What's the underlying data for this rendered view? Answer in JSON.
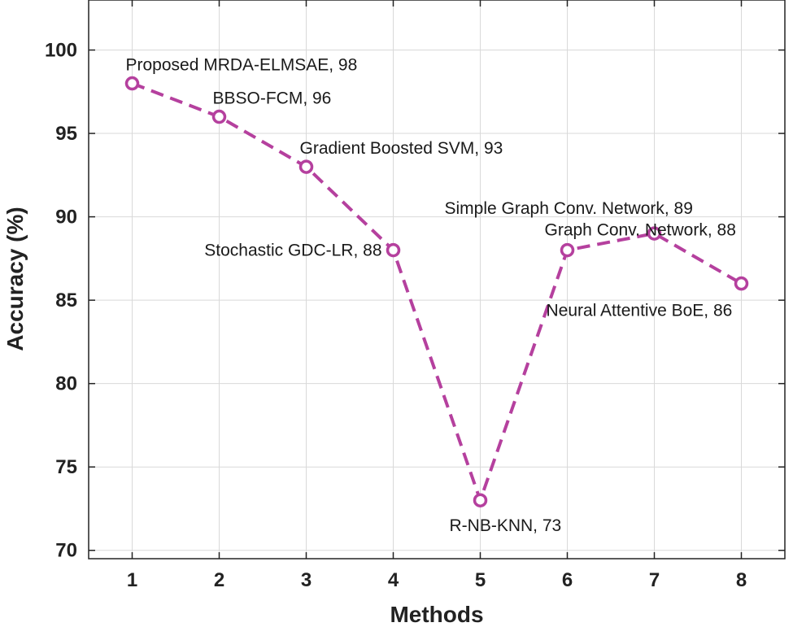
{
  "chart_data": {
    "type": "line",
    "title": "",
    "xlabel": "Methods",
    "ylabel": "Accuracy (%)",
    "x": [
      1,
      2,
      3,
      4,
      5,
      6,
      7,
      8
    ],
    "xlim": [
      0.5,
      8.5
    ],
    "ylim": [
      69.5,
      103
    ],
    "xticks": [
      "1",
      "2",
      "3",
      "4",
      "5",
      "6",
      "7",
      "8"
    ],
    "yticks": [
      70,
      75,
      80,
      85,
      90,
      95,
      100
    ],
    "grid": true,
    "series": [
      {
        "name": "Accuracy",
        "values": [
          98,
          96,
          93,
          88,
          73,
          88,
          89,
          86
        ],
        "color": "#b5409e",
        "line_style": "dashed",
        "marker": "circle"
      }
    ],
    "annotations": [
      {
        "text": "Proposed MRDA-ELMSAE, 98",
        "point": 1
      },
      {
        "text": "BBSO-FCM, 96",
        "point": 2
      },
      {
        "text": "Gradient Boosted SVM, 93",
        "point": 3
      },
      {
        "text": "Stochastic GDC-LR, 88",
        "point": 4
      },
      {
        "text": "R-NB-KNN, 73",
        "point": 5
      },
      {
        "text": "Graph Conv. Network, 88",
        "point": 6
      },
      {
        "text": "Simple Graph Conv. Network, 89",
        "point": 7
      },
      {
        "text": "Neural Attentive BoE, 86",
        "point": 8
      }
    ]
  }
}
